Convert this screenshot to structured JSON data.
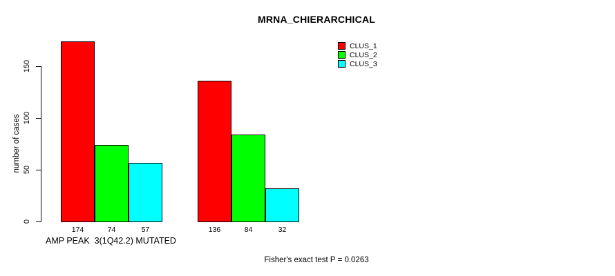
{
  "title": "MRNA_CHIERARCHICAL",
  "chart_data": {
    "type": "bar",
    "title": "MRNA_CHIERARCHICAL",
    "ylabel": "number of cases",
    "xlabel": "AMP PEAK  3(1Q42.2) MUTATED",
    "groups": [
      "AMP PEAK  3(1Q42.2) MUTATED",
      ""
    ],
    "series": [
      {
        "name": "CLUS_1",
        "color": "#FF0000",
        "values": [
          174,
          136
        ]
      },
      {
        "name": "CLUS_2",
        "color": "#00FF00",
        "values": [
          74,
          84
        ]
      },
      {
        "name": "CLUS_3",
        "color": "#00FFFF",
        "values": [
          57,
          32
        ]
      }
    ],
    "bar_value_labels": [
      [
        174,
        74,
        57
      ],
      [
        136,
        84,
        32
      ]
    ],
    "yticks": [
      0,
      50,
      100,
      150
    ],
    "ylim": [
      0,
      175
    ],
    "grid": false,
    "legend_position": "top-right",
    "annotation": "Fisher's exact test P = 0.0263"
  },
  "colors": {
    "bar_border": "#000000",
    "axis": "#000000",
    "background": "#FFFFFF"
  }
}
